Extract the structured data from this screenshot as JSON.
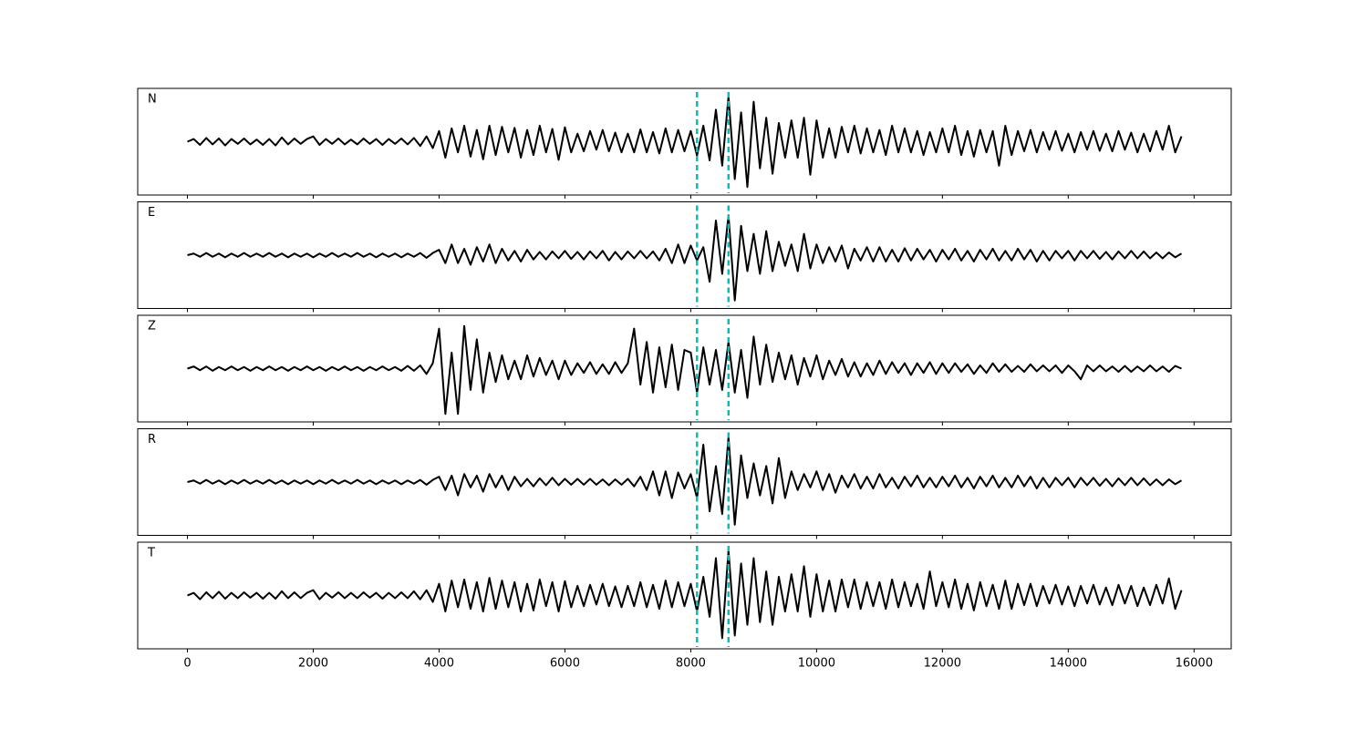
{
  "chart_data": {
    "type": "line",
    "x": [
      0,
      100,
      200,
      300,
      400,
      500,
      600,
      700,
      800,
      900,
      1000,
      1100,
      1200,
      1300,
      1400,
      1500,
      1600,
      1700,
      1800,
      1900,
      2000,
      2100,
      2200,
      2300,
      2400,
      2500,
      2600,
      2700,
      2800,
      2900,
      3000,
      3100,
      3200,
      3300,
      3400,
      3500,
      3600,
      3700,
      3800,
      3900,
      4000,
      4100,
      4200,
      4300,
      4400,
      4500,
      4600,
      4700,
      4800,
      4900,
      5000,
      5100,
      5200,
      5300,
      5400,
      5500,
      5600,
      5700,
      5800,
      5900,
      6000,
      6100,
      6200,
      6300,
      6400,
      6500,
      6600,
      6700,
      6800,
      6900,
      7000,
      7100,
      7200,
      7300,
      7400,
      7500,
      7600,
      7700,
      7800,
      7900,
      8000,
      8100,
      8200,
      8300,
      8400,
      8500,
      8600,
      8700,
      8800,
      8900,
      9000,
      9100,
      9200,
      9300,
      9400,
      9500,
      9600,
      9700,
      9800,
      9900,
      10000,
      10100,
      10200,
      10300,
      10400,
      10500,
      10600,
      10700,
      10800,
      10900,
      11000,
      11100,
      11200,
      11300,
      11400,
      11500,
      11600,
      11700,
      11800,
      11900,
      12000,
      12100,
      12200,
      12300,
      12400,
      12500,
      12600,
      12700,
      12800,
      12900,
      13000,
      13100,
      13200,
      13300,
      13400,
      13500,
      13600,
      13700,
      13800,
      13900,
      14000,
      14100,
      14200,
      14300,
      14400,
      14500,
      14600,
      14700,
      14800,
      14900,
      15000,
      15100,
      15200,
      15300,
      15400,
      15500,
      15600,
      15700,
      15800
    ],
    "xlim": [
      -790,
      16590
    ],
    "xticks": [
      0,
      2000,
      4000,
      6000,
      8000,
      10000,
      12000,
      14000,
      16000
    ],
    "ylim": [
      -1,
      1
    ],
    "color": "#000000",
    "vlines": {
      "x": [
        8100,
        8600
      ],
      "color": "#00bfbf"
    },
    "series": [
      {
        "name": "N",
        "values": [
          0,
          0.05,
          -0.06,
          0.07,
          -0.05,
          0.06,
          -0.07,
          0.05,
          -0.04,
          0.06,
          -0.05,
          0.04,
          -0.06,
          0.05,
          -0.07,
          0.08,
          -0.05,
          0.06,
          -0.04,
          0.05,
          0.1,
          -0.06,
          0.05,
          -0.04,
          0.06,
          -0.05,
          0.04,
          -0.05,
          0.06,
          -0.04,
          0.05,
          -0.06,
          0.05,
          -0.04,
          0.06,
          -0.05,
          0.07,
          -0.08,
          0.1,
          -0.12,
          0.2,
          -0.3,
          0.25,
          -0.2,
          0.3,
          -0.28,
          0.22,
          -0.33,
          0.3,
          -0.25,
          0.28,
          -0.2,
          0.26,
          -0.3,
          0.22,
          -0.25,
          0.3,
          -0.2,
          0.24,
          -0.34,
          0.27,
          -0.2,
          0.15,
          -0.18,
          0.2,
          -0.15,
          0.22,
          -0.18,
          0.17,
          -0.2,
          0.15,
          -0.2,
          0.23,
          -0.2,
          0.18,
          -0.22,
          0.25,
          -0.2,
          0.22,
          -0.18,
          0.2,
          -0.26,
          0.3,
          -0.35,
          0.6,
          -0.45,
          0.85,
          -0.7,
          0.55,
          -0.85,
          0.75,
          -0.5,
          0.45,
          -0.6,
          0.35,
          -0.3,
          0.4,
          -0.3,
          0.45,
          -0.62,
          0.4,
          -0.3,
          0.25,
          -0.3,
          0.28,
          -0.2,
          0.3,
          -0.22,
          0.25,
          -0.2,
          0.22,
          -0.25,
          0.3,
          -0.2,
          0.25,
          -0.2,
          0.2,
          -0.25,
          0.18,
          -0.2,
          0.25,
          -0.2,
          0.3,
          -0.25,
          0.2,
          -0.28,
          0.22,
          -0.2,
          0.2,
          -0.45,
          0.3,
          -0.25,
          0.2,
          -0.18,
          0.22,
          -0.2,
          0.18,
          -0.15,
          0.2,
          -0.17,
          0.15,
          -0.2,
          0.18,
          -0.15,
          0.2,
          -0.17,
          0.15,
          -0.18,
          0.2,
          -0.15,
          0.17,
          -0.2,
          0.15,
          -0.18,
          0.2,
          -0.15,
          0.3,
          -0.2,
          0.1
        ]
      },
      {
        "name": "E",
        "values": [
          0,
          0.03,
          -0.03,
          0.04,
          -0.03,
          0.03,
          -0.04,
          0.03,
          -0.03,
          0.04,
          -0.03,
          0.03,
          -0.03,
          0.04,
          -0.03,
          0.03,
          -0.04,
          0.03,
          -0.03,
          0.03,
          -0.04,
          0.03,
          -0.03,
          0.04,
          -0.03,
          0.03,
          -0.03,
          0.04,
          -0.03,
          0.03,
          -0.04,
          0.03,
          -0.03,
          0.03,
          -0.04,
          0.03,
          -0.03,
          0.04,
          -0.05,
          0.04,
          0.1,
          -0.15,
          0.2,
          -0.15,
          0.12,
          -0.18,
          0.15,
          -0.12,
          0.2,
          -0.15,
          0.12,
          -0.1,
          0.08,
          -0.12,
          0.1,
          -0.08,
          0.06,
          -0.08,
          0.07,
          -0.06,
          0.08,
          -0.07,
          0.06,
          -0.08,
          0.07,
          -0.06,
          0.08,
          -0.1,
          0.06,
          -0.08,
          0.07,
          -0.06,
          0.08,
          -0.06,
          0.07,
          -0.1,
          0.12,
          -0.15,
          0.2,
          -0.15,
          0.18,
          -0.1,
          0.15,
          -0.5,
          0.65,
          -0.35,
          0.75,
          -0.85,
          0.55,
          -0.3,
          0.4,
          -0.35,
          0.45,
          -0.3,
          0.25,
          -0.2,
          0.2,
          -0.3,
          0.4,
          -0.25,
          0.2,
          -0.15,
          0.15,
          -0.12,
          0.18,
          -0.25,
          0.12,
          -0.1,
          0.15,
          -0.12,
          0.15,
          -0.12,
          0.1,
          -0.12,
          0.13,
          -0.1,
          0.12,
          -0.08,
          0.1,
          -0.12,
          0.1,
          -0.08,
          0.12,
          -0.1,
          0.08,
          -0.12,
          0.1,
          -0.08,
          0.12,
          -0.1,
          0.08,
          -0.1,
          0.12,
          -0.08,
          0.1,
          -0.12,
          0.08,
          -0.1,
          0.08,
          -0.06,
          0.08,
          -0.1,
          0.08,
          -0.06,
          0.08,
          -0.07,
          0.06,
          -0.08,
          0.07,
          -0.06,
          0.08,
          -0.06,
          0.07,
          -0.06,
          0.05,
          -0.06,
          0.05,
          -0.04,
          0.03
        ]
      },
      {
        "name": "Z",
        "values": [
          0,
          0.04,
          -0.03,
          0.04,
          -0.04,
          0.03,
          -0.03,
          0.04,
          -0.03,
          0.03,
          -0.04,
          0.03,
          -0.03,
          0.04,
          -0.03,
          0.03,
          -0.04,
          0.03,
          -0.03,
          0.04,
          -0.03,
          0.03,
          -0.04,
          0.03,
          -0.03,
          0.04,
          -0.03,
          0.03,
          -0.04,
          0.03,
          -0.03,
          0.04,
          -0.03,
          0.03,
          -0.04,
          0.05,
          -0.04,
          0.06,
          -0.1,
          0.1,
          0.75,
          -0.85,
          0.3,
          -0.85,
          0.8,
          -0.4,
          0.55,
          -0.45,
          0.3,
          -0.25,
          0.25,
          -0.2,
          0.15,
          -0.2,
          0.25,
          -0.15,
          0.2,
          -0.12,
          0.15,
          -0.2,
          0.15,
          -0.12,
          0.1,
          -0.08,
          0.12,
          -0.1,
          0.08,
          -0.1,
          0.12,
          -0.08,
          0.1,
          0.75,
          -0.3,
          0.5,
          -0.45,
          0.4,
          -0.35,
          0.45,
          -0.4,
          0.35,
          0.3,
          -0.45,
          0.4,
          -0.3,
          0.35,
          -0.4,
          0.5,
          -0.45,
          0.35,
          -0.55,
          0.6,
          -0.3,
          0.45,
          -0.25,
          0.3,
          -0.2,
          0.25,
          -0.3,
          0.2,
          -0.15,
          0.25,
          -0.2,
          0.15,
          -0.12,
          0.18,
          -0.15,
          0.12,
          -0.15,
          0.1,
          -0.12,
          0.15,
          -0.1,
          0.12,
          -0.08,
          0.1,
          -0.12,
          0.1,
          -0.08,
          0.12,
          -0.1,
          0.1,
          -0.08,
          0.1,
          -0.06,
          0.08,
          -0.1,
          0.06,
          -0.08,
          0.1,
          -0.06,
          0.08,
          -0.06,
          0.05,
          -0.06,
          0.08,
          -0.05,
          0.06,
          -0.05,
          0.06,
          -0.08,
          0.06,
          -0.05,
          -0.2,
          0.06,
          -0.05,
          0.06,
          -0.05,
          0.04,
          -0.06,
          0.05,
          -0.06,
          0.04,
          -0.05,
          0.06,
          -0.05,
          0.04,
          -0.06,
          0.05,
          0
        ]
      },
      {
        "name": "R",
        "values": [
          0,
          0.03,
          -0.03,
          0.04,
          -0.03,
          0.03,
          -0.04,
          0.03,
          -0.03,
          0.04,
          -0.03,
          0.03,
          -0.03,
          0.04,
          -0.03,
          0.03,
          -0.04,
          0.03,
          -0.03,
          0.03,
          -0.04,
          0.03,
          -0.03,
          0.04,
          -0.03,
          0.03,
          -0.03,
          0.04,
          -0.03,
          0.03,
          -0.04,
          0.03,
          -0.03,
          0.03,
          -0.04,
          0.03,
          -0.03,
          0.04,
          -0.05,
          0.04,
          0.1,
          -0.15,
          0.12,
          -0.25,
          0.15,
          -0.1,
          0.12,
          -0.18,
          0.15,
          -0.1,
          0.12,
          -0.15,
          0.1,
          -0.08,
          0.06,
          -0.08,
          0.07,
          -0.06,
          0.08,
          -0.06,
          0.06,
          -0.05,
          0.06,
          -0.05,
          0.06,
          -0.05,
          0.05,
          -0.06,
          0.05,
          -0.05,
          0.06,
          -0.08,
          0.1,
          -0.15,
          0.2,
          -0.25,
          0.2,
          -0.3,
          0.18,
          -0.12,
          0.15,
          -0.3,
          0.7,
          -0.55,
          0.3,
          -0.6,
          0.85,
          -0.8,
          0.5,
          -0.3,
          0.35,
          -0.25,
          0.3,
          -0.4,
          0.45,
          -0.3,
          0.2,
          -0.15,
          0.15,
          -0.1,
          0.2,
          -0.15,
          0.15,
          -0.2,
          0.12,
          -0.1,
          0.15,
          -0.12,
          0.1,
          -0.12,
          0.15,
          -0.1,
          0.08,
          -0.12,
          0.1,
          -0.08,
          0.12,
          -0.1,
          0.08,
          -0.1,
          0.1,
          -0.08,
          0.12,
          -0.1,
          0.08,
          -0.12,
          0.1,
          -0.08,
          0.12,
          -0.1,
          0.08,
          -0.1,
          0.12,
          -0.08,
          0.1,
          -0.12,
          0.08,
          -0.1,
          0.08,
          -0.06,
          0.08,
          -0.1,
          0.08,
          -0.06,
          0.08,
          -0.07,
          0.06,
          -0.08,
          0.07,
          -0.06,
          0.08,
          -0.06,
          0.07,
          -0.06,
          0.05,
          -0.06,
          0.05,
          -0.04,
          0.03
        ]
      },
      {
        "name": "T",
        "values": [
          0,
          0.05,
          -0.07,
          0.06,
          -0.05,
          0.07,
          -0.06,
          0.05,
          -0.05,
          0.06,
          -0.04,
          0.05,
          -0.06,
          0.05,
          -0.06,
          0.08,
          -0.05,
          0.06,
          -0.05,
          0.05,
          0.1,
          -0.07,
          0.05,
          -0.04,
          0.06,
          -0.05,
          0.05,
          -0.05,
          0.06,
          -0.04,
          0.05,
          -0.06,
          0.05,
          -0.05,
          0.06,
          -0.05,
          0.08,
          -0.07,
          0.1,
          -0.12,
          0.22,
          -0.3,
          0.28,
          -0.22,
          0.3,
          -0.25,
          0.25,
          -0.3,
          0.33,
          -0.25,
          0.28,
          -0.22,
          0.25,
          -0.3,
          0.22,
          -0.28,
          0.3,
          -0.2,
          0.25,
          -0.3,
          0.27,
          -0.22,
          0.18,
          -0.2,
          0.2,
          -0.17,
          0.22,
          -0.2,
          0.17,
          -0.22,
          0.18,
          -0.2,
          0.25,
          -0.22,
          0.2,
          -0.25,
          0.28,
          -0.22,
          0.25,
          -0.2,
          0.22,
          -0.3,
          0.35,
          -0.4,
          0.7,
          -0.8,
          0.85,
          -0.75,
          0.6,
          -0.55,
          0.7,
          -0.5,
          0.45,
          -0.55,
          0.35,
          -0.3,
          0.4,
          -0.3,
          0.55,
          -0.4,
          0.4,
          -0.3,
          0.28,
          -0.3,
          0.3,
          -0.22,
          0.3,
          -0.25,
          0.25,
          -0.2,
          0.25,
          -0.25,
          0.3,
          -0.22,
          0.25,
          -0.2,
          0.22,
          -0.25,
          0.45,
          -0.2,
          0.25,
          -0.22,
          0.3,
          -0.25,
          0.22,
          -0.28,
          0.25,
          -0.2,
          0.2,
          -0.25,
          0.28,
          -0.25,
          0.22,
          -0.18,
          0.22,
          -0.2,
          0.18,
          -0.15,
          0.2,
          -0.17,
          0.17,
          -0.2,
          0.18,
          -0.15,
          0.2,
          -0.17,
          0.15,
          -0.18,
          0.2,
          -0.15,
          0.18,
          -0.2,
          0.15,
          -0.18,
          0.2,
          -0.15,
          0.32,
          -0.25,
          0.1
        ]
      }
    ]
  }
}
